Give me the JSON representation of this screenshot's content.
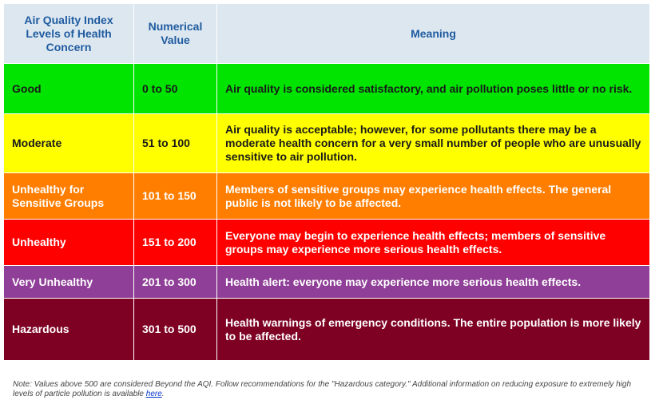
{
  "header": {
    "level": "Air Quality Index Levels of Health Concern",
    "value": "Numerical Value",
    "meaning": "Meaning"
  },
  "rows": [
    {
      "level": "Good",
      "value": "0 to 50",
      "meaning": "Air quality is considered satisfactory, and air pollution poses little or no risk.",
      "bg": "#00e400",
      "fg": "#1a1a1a"
    },
    {
      "level": "Moderate",
      "value": "51 to 100",
      "meaning": "Air quality is acceptable; however, for some pollutants there may be a moderate health concern for a very small number of people who are unusually sensitive to air pollution.",
      "bg": "#ffff00",
      "fg": "#1a1a1a"
    },
    {
      "level": "Unhealthy for Sensitive Groups",
      "value": "101 to 150",
      "meaning": "Members of sensitive groups may experience health effects. The general public is not likely to be affected.",
      "bg": "#ff7e00",
      "fg": "#ffffff"
    },
    {
      "level": "Unhealthy",
      "value": "151 to 200",
      "meaning": "Everyone may begin to experience health effects; members of sensitive groups may experience more serious health effects.",
      "bg": "#ff0000",
      "fg": "#ffffff"
    },
    {
      "level": "Very Unhealthy",
      "value": "201 to 300",
      "meaning": "Health alert: everyone may experience more serious health effects.",
      "bg": "#8f3f97",
      "fg": "#ffffff"
    },
    {
      "level": "Hazardous",
      "value": "301 to 500",
      "meaning": "Health warnings of emergency conditions. The entire population is more likely to be affected.",
      "bg": "#7e0023",
      "fg": "#ffffff"
    }
  ],
  "note": {
    "text": "Note: Values above 500 are considered Beyond the AQI. Follow recommendations for the \"Hazardous category.\" Additional information on reducing exposure to extremely high levels of particle pollution is available ",
    "link_label": "here",
    "end": "."
  }
}
